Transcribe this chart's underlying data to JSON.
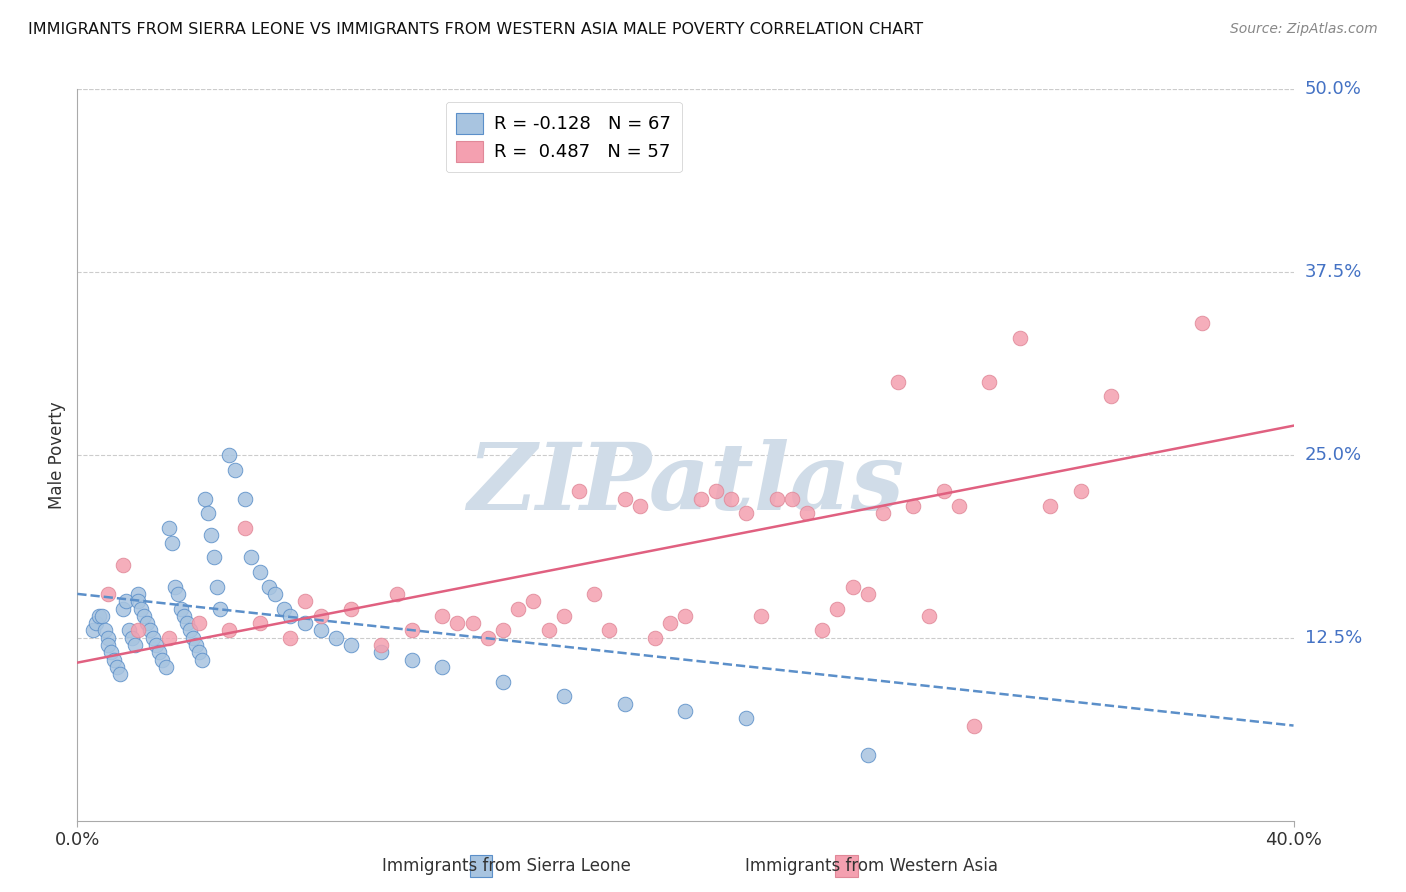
{
  "title": "IMMIGRANTS FROM SIERRA LEONE VS IMMIGRANTS FROM WESTERN ASIA MALE POVERTY CORRELATION CHART",
  "source": "Source: ZipAtlas.com",
  "ylabel": "Male Poverty",
  "ytick_labels": [
    "50.0%",
    "37.5%",
    "25.0%",
    "12.5%"
  ],
  "ytick_values": [
    0.5,
    0.375,
    0.25,
    0.125
  ],
  "xlim": [
    0.0,
    0.4
  ],
  "ylim": [
    0.0,
    0.5
  ],
  "color_sierra": "#a8c4e0",
  "color_western": "#f4a0b0",
  "color_trendline_sierra": "#5b8fc9",
  "color_trendline_western": "#e06080",
  "watermark": "ZIPatlas",
  "watermark_color": "#d0dce8",
  "sierra_leone_x": [
    0.005,
    0.006,
    0.007,
    0.008,
    0.009,
    0.01,
    0.01,
    0.011,
    0.012,
    0.013,
    0.014,
    0.015,
    0.016,
    0.017,
    0.018,
    0.019,
    0.02,
    0.02,
    0.021,
    0.022,
    0.023,
    0.024,
    0.025,
    0.026,
    0.027,
    0.028,
    0.029,
    0.03,
    0.031,
    0.032,
    0.033,
    0.034,
    0.035,
    0.036,
    0.037,
    0.038,
    0.039,
    0.04,
    0.041,
    0.042,
    0.043,
    0.044,
    0.045,
    0.046,
    0.047,
    0.05,
    0.052,
    0.055,
    0.057,
    0.06,
    0.063,
    0.065,
    0.068,
    0.07,
    0.075,
    0.08,
    0.085,
    0.09,
    0.1,
    0.11,
    0.12,
    0.14,
    0.16,
    0.18,
    0.2,
    0.22,
    0.26
  ],
  "sierra_leone_y": [
    0.13,
    0.135,
    0.14,
    0.14,
    0.13,
    0.125,
    0.12,
    0.115,
    0.11,
    0.105,
    0.1,
    0.145,
    0.15,
    0.13,
    0.125,
    0.12,
    0.155,
    0.15,
    0.145,
    0.14,
    0.135,
    0.13,
    0.125,
    0.12,
    0.115,
    0.11,
    0.105,
    0.2,
    0.19,
    0.16,
    0.155,
    0.145,
    0.14,
    0.135,
    0.13,
    0.125,
    0.12,
    0.115,
    0.11,
    0.22,
    0.21,
    0.195,
    0.18,
    0.16,
    0.145,
    0.25,
    0.24,
    0.22,
    0.18,
    0.17,
    0.16,
    0.155,
    0.145,
    0.14,
    0.135,
    0.13,
    0.125,
    0.12,
    0.115,
    0.11,
    0.105,
    0.095,
    0.085,
    0.08,
    0.075,
    0.07,
    0.045
  ],
  "western_asia_x": [
    0.01,
    0.015,
    0.02,
    0.03,
    0.04,
    0.05,
    0.055,
    0.06,
    0.07,
    0.075,
    0.08,
    0.09,
    0.1,
    0.105,
    0.11,
    0.12,
    0.125,
    0.13,
    0.135,
    0.14,
    0.145,
    0.15,
    0.155,
    0.16,
    0.165,
    0.17,
    0.175,
    0.18,
    0.185,
    0.19,
    0.195,
    0.2,
    0.205,
    0.21,
    0.215,
    0.22,
    0.225,
    0.23,
    0.235,
    0.24,
    0.245,
    0.25,
    0.255,
    0.26,
    0.265,
    0.27,
    0.275,
    0.28,
    0.285,
    0.29,
    0.295,
    0.3,
    0.31,
    0.32,
    0.33,
    0.34,
    0.37
  ],
  "western_asia_y": [
    0.155,
    0.175,
    0.13,
    0.125,
    0.135,
    0.13,
    0.2,
    0.135,
    0.125,
    0.15,
    0.14,
    0.145,
    0.12,
    0.155,
    0.13,
    0.14,
    0.135,
    0.135,
    0.125,
    0.13,
    0.145,
    0.15,
    0.13,
    0.14,
    0.225,
    0.155,
    0.13,
    0.22,
    0.215,
    0.125,
    0.135,
    0.14,
    0.22,
    0.225,
    0.22,
    0.21,
    0.14,
    0.22,
    0.22,
    0.21,
    0.13,
    0.145,
    0.16,
    0.155,
    0.21,
    0.3,
    0.215,
    0.14,
    0.225,
    0.215,
    0.065,
    0.3,
    0.33,
    0.215,
    0.225,
    0.29,
    0.34
  ],
  "sl_trendline_x": [
    0.0,
    0.4
  ],
  "sl_trendline_y": [
    0.155,
    0.065
  ],
  "wa_trendline_x": [
    0.0,
    0.4
  ],
  "wa_trendline_y": [
    0.108,
    0.27
  ]
}
